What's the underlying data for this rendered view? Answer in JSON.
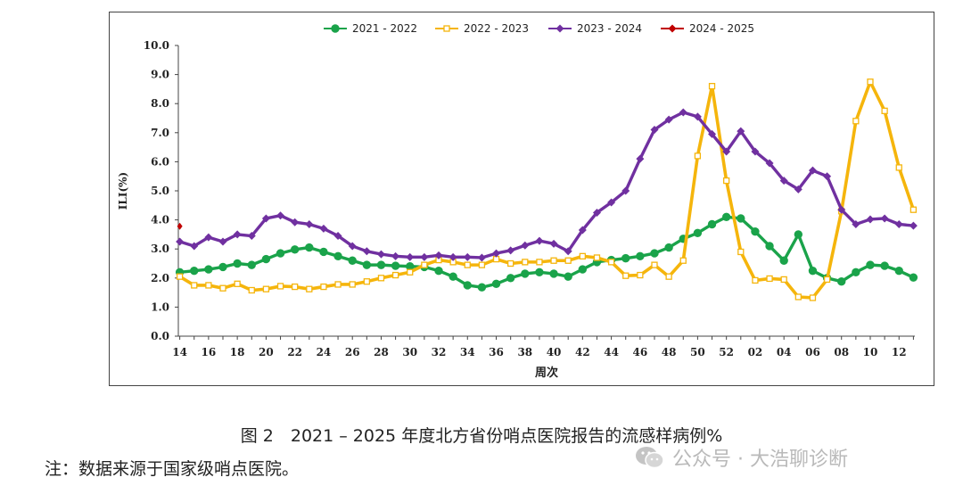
{
  "chart_data": {
    "type": "line",
    "ylabel": "ILI(%)",
    "xlabel": "周次",
    "ylim": [
      0,
      10
    ],
    "yticks": [
      "0.0",
      "1.0",
      "2.0",
      "3.0",
      "4.0",
      "5.0",
      "6.0",
      "7.0",
      "8.0",
      "9.0",
      "10.0"
    ],
    "x_weeks": [
      14,
      15,
      16,
      17,
      18,
      19,
      20,
      21,
      22,
      23,
      24,
      25,
      26,
      27,
      28,
      29,
      30,
      31,
      32,
      33,
      34,
      35,
      36,
      37,
      38,
      39,
      40,
      41,
      42,
      43,
      44,
      45,
      46,
      47,
      48,
      49,
      50,
      51,
      52,
      1,
      2,
      3,
      4,
      5,
      6,
      7,
      8,
      9,
      10,
      11,
      12,
      13
    ],
    "xtick_labels": [
      "14",
      "16",
      "18",
      "20",
      "22",
      "24",
      "26",
      "28",
      "30",
      "32",
      "34",
      "36",
      "38",
      "40",
      "42",
      "44",
      "46",
      "48",
      "50",
      "52",
      "02",
      "04",
      "06",
      "08",
      "10",
      "12"
    ],
    "series": [
      {
        "name": "2021 - 2022",
        "color": "#1aa34a",
        "marker": "circle",
        "values": [
          2.2,
          2.25,
          2.3,
          2.38,
          2.5,
          2.45,
          2.65,
          2.85,
          2.98,
          3.05,
          2.9,
          2.75,
          2.6,
          2.45,
          2.45,
          2.42,
          2.4,
          2.38,
          2.25,
          2.05,
          1.75,
          1.68,
          1.8,
          2.0,
          2.15,
          2.2,
          2.15,
          2.05,
          2.3,
          2.55,
          2.62,
          2.68,
          2.75,
          2.85,
          3.05,
          3.35,
          3.55,
          3.85,
          4.1,
          4.05,
          3.6,
          3.1,
          2.6,
          3.5,
          2.25,
          2.0,
          1.88,
          2.2,
          2.45,
          2.42,
          2.25,
          2.02
        ]
      },
      {
        "name": "2022 - 2023",
        "color": "#f5b50c",
        "marker": "square",
        "values": [
          2.05,
          1.75,
          1.75,
          1.65,
          1.8,
          1.58,
          1.62,
          1.72,
          1.7,
          1.62,
          1.7,
          1.78,
          1.78,
          1.88,
          2.0,
          2.1,
          2.2,
          2.45,
          2.62,
          2.55,
          2.45,
          2.45,
          2.65,
          2.5,
          2.55,
          2.55,
          2.6,
          2.6,
          2.75,
          2.7,
          2.55,
          2.08,
          2.1,
          2.45,
          2.05,
          2.6,
          6.2,
          8.6,
          5.35,
          2.9,
          1.92,
          1.98,
          1.95,
          1.35,
          1.32,
          1.95,
          4.3,
          7.4,
          8.75,
          7.75,
          5.8,
          4.35
        ]
      },
      {
        "name": "2023 - 2024",
        "color": "#7030a0",
        "marker": "diamond",
        "values": [
          3.25,
          3.1,
          3.4,
          3.25,
          3.5,
          3.45,
          4.05,
          4.15,
          3.92,
          3.85,
          3.7,
          3.45,
          3.1,
          2.92,
          2.82,
          2.75,
          2.72,
          2.72,
          2.78,
          2.72,
          2.72,
          2.7,
          2.85,
          2.95,
          3.12,
          3.28,
          3.18,
          2.92,
          3.65,
          4.25,
          4.6,
          5.0,
          6.1,
          7.1,
          7.45,
          7.7,
          7.55,
          6.95,
          6.35,
          7.05,
          6.35,
          5.95,
          5.35,
          5.05,
          5.7,
          5.5,
          4.35,
          3.85,
          4.02,
          4.05,
          3.85,
          3.8
        ]
      },
      {
        "name": "2024 - 2025",
        "color": "#c00000",
        "marker": "diamond-small",
        "values": [
          3.78
        ]
      }
    ]
  },
  "caption": "图 2　2021 – 2025 年度北方省份哨点医院报告的流感样病例%",
  "note": "注：数据来源于国家级哨点医院。",
  "watermark": "公众号 · 大浩聊诊断"
}
